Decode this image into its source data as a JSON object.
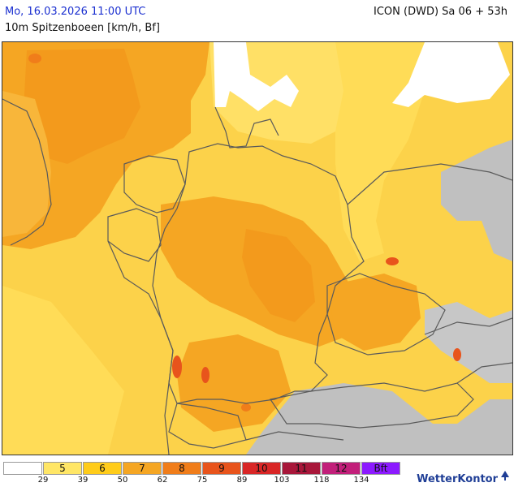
{
  "header": {
    "valid_time": "Mo, 16.03.2026 11:00 UTC",
    "model_run": "ICON (DWD) Sa 06 + 53h",
    "parameter": "10m Spitzenboeen [km/h, Bf]"
  },
  "legend": {
    "bins": [
      {
        "label": "",
        "color": "#ffffff"
      },
      {
        "label": "5",
        "color": "#ffe666"
      },
      {
        "label": "6",
        "color": "#ffcc1a"
      },
      {
        "label": "7",
        "color": "#f5a623"
      },
      {
        "label": "8",
        "color": "#f07d1a"
      },
      {
        "label": "9",
        "color": "#e8541c"
      },
      {
        "label": "10",
        "color": "#d92626"
      },
      {
        "label": "11",
        "color": "#a8173a"
      },
      {
        "label": "12",
        "color": "#c21f7a"
      },
      {
        "label": "Bft",
        "color": "#8c1aff"
      }
    ],
    "ticks": [
      "29",
      "39",
      "50",
      "62",
      "75",
      "89",
      "103",
      "118",
      "134"
    ]
  },
  "branding": {
    "name": "WetterKontor",
    "accent": "#1f3e96"
  },
  "map": {
    "land_no_data_color": "#c0c0c0",
    "border_color": "#5a5a5a",
    "icons": [
      "tree-logo-icon"
    ]
  }
}
